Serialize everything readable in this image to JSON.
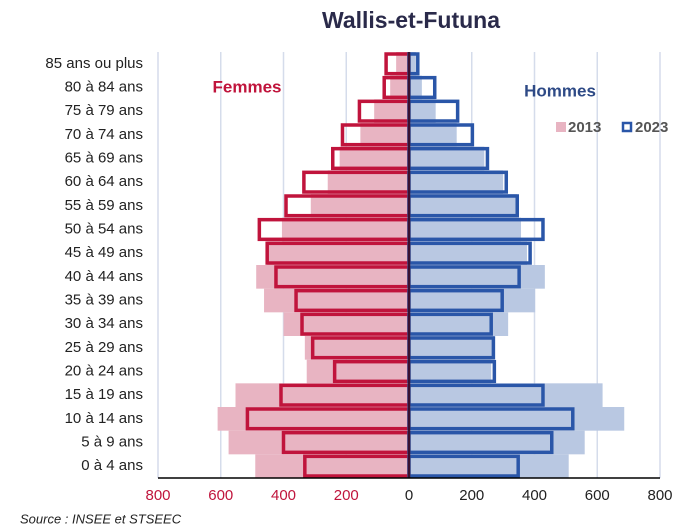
{
  "chart_data": {
    "type": "pyramid",
    "title": "Wallis-et-Futuna",
    "source": "Source : INSEE et STSEEC",
    "categories": [
      "0 à 4 ans",
      "5 à 9 ans",
      "10 à 14 ans",
      "15 à 19 ans",
      "20 à 24 ans",
      "25 à 29 ans",
      "30 à 34 ans",
      "35 à 39 ans",
      "40 à 44 ans",
      "45 à 49 ans",
      "50 à 54 ans",
      "55 à 59 ans",
      "60 à 64 ans",
      "65 à 69 ans",
      "70 à 74 ans",
      "75 à 79 ans",
      "80 à 84 ans",
      "85 ans ou plus"
    ],
    "sides": [
      {
        "name": "Femmes",
        "color": "#c0143c",
        "series": [
          {
            "name": "2013",
            "color": "#e8b4c2",
            "values": [
              490,
              575,
              610,
              553,
              326,
              332,
              400,
              462,
              487,
              452,
              405,
              313,
              259,
              221,
              155,
              111,
              60,
              41
            ]
          },
          {
            "name": "2023",
            "color": "#c0143c",
            "values": [
              332,
              400,
              515,
              408,
              237,
              307,
              341,
              360,
              424,
              452,
              477,
              392,
              335,
              243,
              212,
              158,
              79,
              73
            ]
          }
        ]
      },
      {
        "name": "Hommes",
        "color": "#2e4a86",
        "series": [
          {
            "name": "2013",
            "color": "#b9c8e2",
            "values": [
              509,
              560,
              686,
              617,
              262,
              272,
              316,
              402,
              433,
              376,
              357,
              345,
              300,
              240,
              152,
              85,
              41,
              22
            ]
          },
          {
            "name": "2023",
            "color": "#2a56a8",
            "values": [
              348,
              455,
              522,
              427,
              272,
              269,
              262,
              297,
              351,
              386,
              427,
              345,
              310,
              250,
              202,
              155,
              82,
              28
            ]
          }
        ]
      }
    ],
    "xlim": [
      -800,
      800
    ],
    "xticks": [
      {
        "value": -800,
        "label": "800"
      },
      {
        "value": -600,
        "label": "600"
      },
      {
        "value": -400,
        "label": "400"
      },
      {
        "value": -200,
        "label": "200"
      },
      0,
      200,
      400,
      600,
      800
    ],
    "grid": true
  }
}
